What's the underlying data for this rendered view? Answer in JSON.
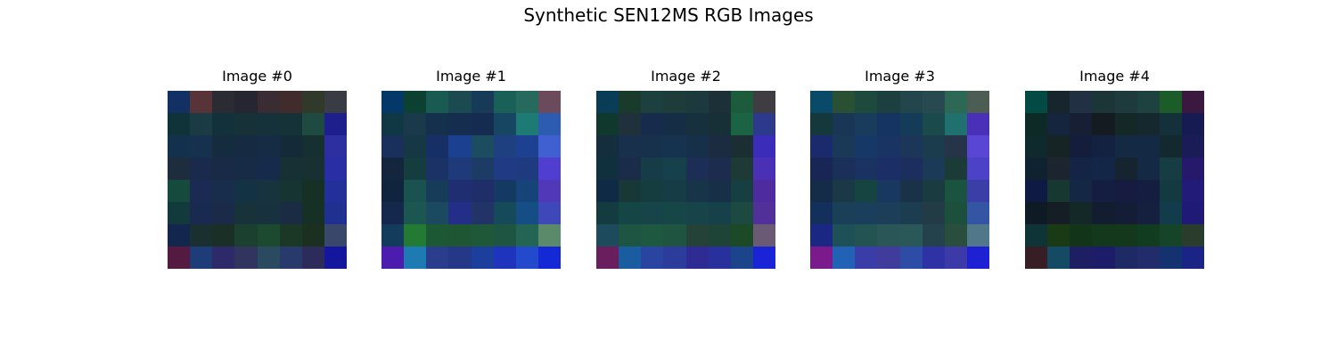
{
  "figure": {
    "title": "Synthetic SEN12MS RGB Images"
  },
  "panels": [
    {
      "title": "Image #0",
      "pixels": [
        [
          "#123064",
          "#583338",
          "#2b2b34",
          "#262633",
          "#3a2c33",
          "#412c2d",
          "#31392b",
          "#393c42"
        ],
        [
          "#0f3338",
          "#1a3a44",
          "#13313a",
          "#163238",
          "#15323a",
          "#153238",
          "#1f4a42",
          "#1e1f8c"
        ],
        [
          "#13304c",
          "#16314e",
          "#142c3e",
          "#162a42",
          "#162c45",
          "#142a38",
          "#163032",
          "#2d2ea0"
        ],
        [
          "#1e2d3e",
          "#1a2a4c",
          "#182a46",
          "#172a46",
          "#162a4c",
          "#163034",
          "#193032",
          "#2a2ea4"
        ],
        [
          "#164a3c",
          "#1a2a52",
          "#182c4c",
          "#133244",
          "#17343e",
          "#163432",
          "#173026",
          "#24309a"
        ],
        [
          "#123a3c",
          "#192a50",
          "#1a2a48",
          "#173238",
          "#17323e",
          "#1a2c44",
          "#173026",
          "#1f3090"
        ],
        [
          "#13274e",
          "#1a3030",
          "#1a3026",
          "#1c4030",
          "#1c4a30",
          "#1b3826",
          "#1b3020",
          "#39486a"
        ],
        [
          "#551a40",
          "#1d3c78",
          "#2e2a6a",
          "#323460",
          "#2a4a60",
          "#283a6c",
          "#2c2c5a",
          "#14179e"
        ]
      ]
    },
    {
      "title": "Image #1",
      "pixels": [
        [
          "#043868",
          "#0c4030",
          "#195a52",
          "#1b4a50",
          "#163a58",
          "#196058",
          "#256a5c",
          "#6b4a5c"
        ],
        [
          "#0f3844",
          "#1a3a4c",
          "#14304c",
          "#152e50",
          "#152c50",
          "#164662",
          "#1e7a74",
          "#2c5cb2"
        ],
        [
          "#19305c",
          "#163844",
          "#163066",
          "#1c4090",
          "#1c4c60",
          "#1f4080",
          "#1d4090",
          "#4060d2"
        ],
        [
          "#13263c",
          "#153c3e",
          "#1a3266",
          "#1f3a78",
          "#1c3c66",
          "#203a84",
          "#203a80",
          "#503ed0"
        ],
        [
          "#10243e",
          "#1a5250",
          "#163c5a",
          "#1e2e70",
          "#1f2e68",
          "#143a64",
          "#174478",
          "#5038b8"
        ],
        [
          "#13284c",
          "#1c5650",
          "#1b4a60",
          "#232e88",
          "#223466",
          "#144a5a",
          "#144e84",
          "#3e48b8"
        ],
        [
          "#133c5c",
          "#237a32",
          "#1c5834",
          "#1e5634",
          "#1f5838",
          "#1e5442",
          "#236454",
          "#5a8a6a"
        ],
        [
          "#4c1cae",
          "#1e7ab2",
          "#2a3c8c",
          "#253888",
          "#1c3e9c",
          "#1f34bc",
          "#234acc",
          "#1428d6"
        ]
      ]
    },
    {
      "title": "Image #2",
      "pixels": [
        [
          "#093c56",
          "#1a3a2c",
          "#1c403e",
          "#1d3c3a",
          "#1c3a3e",
          "#1c3038",
          "#1c5c3c",
          "#3f3c42"
        ],
        [
          "#10392e",
          "#21313c",
          "#172c4c",
          "#152e46",
          "#17303e",
          "#173038",
          "#1a6444",
          "#2d3a8c"
        ],
        [
          "#142e3e",
          "#18304c",
          "#17314c",
          "#15324e",
          "#17304a",
          "#1b2c40",
          "#1b2e34",
          "#3c2cba"
        ],
        [
          "#11303e",
          "#1b2c4a",
          "#163c48",
          "#16404c",
          "#1c2e56",
          "#1b2c4e",
          "#1d3a34",
          "#4a30b4"
        ],
        [
          "#0f2a44",
          "#183838",
          "#153c3e",
          "#163c46",
          "#173448",
          "#173048",
          "#173e40",
          "#4e2ca0"
        ],
        [
          "#123c40",
          "#154646",
          "#164448",
          "#174646",
          "#174448",
          "#16404a",
          "#1c4a40",
          "#52309a"
        ],
        [
          "#1d4a5c",
          "#1e5442",
          "#1e5840",
          "#1e5440",
          "#244238",
          "#1e4438",
          "#1d4a26",
          "#6a5a74"
        ],
        [
          "#6a1e5e",
          "#1a5ca0",
          "#2a44a2",
          "#2c3c9a",
          "#2e2c94",
          "#28309c",
          "#1c448a",
          "#1a24d6"
        ]
      ]
    },
    {
      "title": "Image #3",
      "pixels": [
        [
          "#084a68",
          "#2a5034",
          "#1e4a3e",
          "#1c4040",
          "#22464c",
          "#264a50",
          "#2d6854",
          "#4c5e54"
        ],
        [
          "#14383c",
          "#1a3656",
          "#1a3c5c",
          "#153462",
          "#143c58",
          "#1b4a4c",
          "#207070",
          "#4a30b8"
        ],
        [
          "#1a2a6c",
          "#1a3858",
          "#153866",
          "#193462",
          "#1b3658",
          "#1a3c4c",
          "#253448",
          "#5a46d4"
        ],
        [
          "#172654",
          "#1a3058",
          "#1a3262",
          "#1b2e66",
          "#1c2e5e",
          "#1b3a58",
          "#1b3c36",
          "#4c42c8"
        ],
        [
          "#142c48",
          "#1a3846",
          "#164440",
          "#183860",
          "#1a3248",
          "#1a3c40",
          "#1a5440",
          "#3c3ea8"
        ],
        [
          "#13305c",
          "#1a4058",
          "#1b3e5c",
          "#1c3e58",
          "#1c3c50",
          "#213c44",
          "#1c503c",
          "#3454a4"
        ],
        [
          "#1a2884",
          "#1e5058",
          "#245452",
          "#2a5658",
          "#2a5858",
          "#24424c",
          "#2a4e3e",
          "#50788a"
        ],
        [
          "#7a1a8c",
          "#2262b6",
          "#3a3ca8",
          "#403c9c",
          "#2c4ca6",
          "#2e32a4",
          "#3c3aa8",
          "#1e20d4"
        ]
      ]
    },
    {
      "title": "Image #4",
      "pixels": [
        [
          "#034a44",
          "#17262c",
          "#223044",
          "#1c3638",
          "#1e3a3c",
          "#1e4240",
          "#1c5c28",
          "#3a1840"
        ],
        [
          "#0e2a26",
          "#16253e",
          "#161f34",
          "#141c22",
          "#142828",
          "#14282e",
          "#14303a",
          "#161c52"
        ],
        [
          "#0e2a2c",
          "#172426",
          "#141e3c",
          "#142242",
          "#142a44",
          "#142a44",
          "#142830",
          "#1a1c58"
        ],
        [
          "#0e2230",
          "#1c2430",
          "#142444",
          "#142648",
          "#162430",
          "#142a44",
          "#163c44",
          "#26186a"
        ],
        [
          "#0e1a44",
          "#163830",
          "#142846",
          "#131e40",
          "#151c40",
          "#151e40",
          "#123a40",
          "#221c78"
        ],
        [
          "#0e1a24",
          "#141e24",
          "#142828",
          "#121e30",
          "#131e36",
          "#14203e",
          "#123c4c",
          "#1e1a76"
        ],
        [
          "#0e3438",
          "#1a3a16",
          "#123418",
          "#14381c",
          "#14381c",
          "#123c20",
          "#164428",
          "#2a3c2c"
        ],
        [
          "#361e24",
          "#144a64",
          "#1e1e62",
          "#1d1c68",
          "#1e2a66",
          "#222c6a",
          "#143270",
          "#1a2484"
        ]
      ]
    }
  ]
}
